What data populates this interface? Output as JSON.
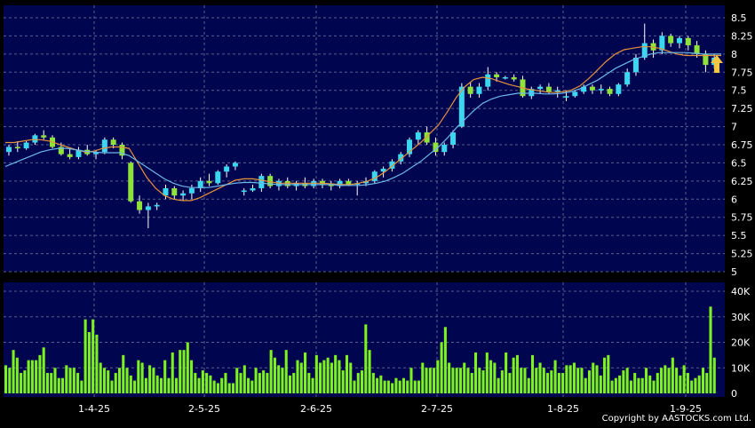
{
  "copyright": "Copyright by AASTOCKS.com Ltd.",
  "colors": {
    "plot_bg": "#000550",
    "grid": "#5a5f8c",
    "up_candle": "#39d8f0",
    "down_candle": "#8ee23a",
    "ma_short": "#e8923a",
    "ma_long": "#6db8e8",
    "volume": "#7df21e",
    "arrow": "#f5c842",
    "text": "#ffffff"
  },
  "chart_data": [
    {
      "type": "candlestick",
      "title": "",
      "x_ticks": [
        "1-4-25",
        "2-5-25",
        "2-6-25",
        "2-7-25",
        "1-8-25",
        "1-9-25"
      ],
      "y_ticks": [
        "8.5",
        "8.25",
        "8",
        "7.75",
        "7.5",
        "7.25",
        "7",
        "6.75",
        "6.5",
        "6.25",
        "6",
        "5.75",
        "5.5",
        "5.25",
        "5"
      ],
      "ylim": [
        5,
        8.5
      ],
      "grid": true,
      "series": [
        {
          "type": "line",
          "values": [
            6.78,
            6.78,
            6.8,
            6.82,
            6.82,
            6.8,
            6.76,
            6.72,
            6.68,
            6.65,
            6.66,
            6.7,
            6.72,
            6.72,
            6.7,
            6.5,
            6.3,
            6.15,
            6.05,
            6.0,
            5.98,
            5.98,
            6.02,
            6.08,
            6.14,
            6.2,
            6.26,
            6.28,
            6.28,
            6.26,
            6.24,
            6.22,
            6.22,
            6.22,
            6.22,
            6.22,
            6.22,
            6.21,
            6.2,
            6.2,
            6.22,
            6.25,
            6.3,
            6.38,
            6.48,
            6.58,
            6.68,
            6.78,
            6.9,
            7.02,
            7.2,
            7.4,
            7.55,
            7.65,
            7.68,
            7.66,
            7.62,
            7.58,
            7.55,
            7.52,
            7.5,
            7.48,
            7.47,
            7.48,
            7.5,
            7.56,
            7.66,
            7.78,
            7.9,
            8.0,
            8.06,
            8.08,
            8.1,
            8.1,
            8.08,
            8.04,
            8.0,
            7.98,
            7.98,
            7.98,
            7.98,
            7.98
          ]
        },
        {
          "type": "line",
          "values": [
            6.45,
            6.5,
            6.55,
            6.6,
            6.65,
            6.68,
            6.7,
            6.7,
            6.68,
            6.66,
            6.65,
            6.64,
            6.64,
            6.64,
            6.6,
            6.52,
            6.44,
            6.36,
            6.28,
            6.22,
            6.18,
            6.16,
            6.16,
            6.16,
            6.18,
            6.2,
            6.22,
            6.23,
            6.23,
            6.22,
            6.21,
            6.2,
            6.2,
            6.2,
            6.2,
            6.2,
            6.2,
            6.2,
            6.19,
            6.19,
            6.19,
            6.2,
            6.22,
            6.25,
            6.3,
            6.36,
            6.44,
            6.52,
            6.62,
            6.72,
            6.84,
            6.98,
            7.1,
            7.22,
            7.32,
            7.38,
            7.42,
            7.44,
            7.46,
            7.46,
            7.46,
            7.45,
            7.45,
            7.46,
            7.48,
            7.52,
            7.58,
            7.64,
            7.72,
            7.8,
            7.86,
            7.92,
            7.96,
            8.0,
            8.02,
            8.02,
            8.02,
            8.02,
            8.01,
            8.0,
            8.0,
            8.0
          ]
        }
      ],
      "candles": [
        {
          "o": 6.65,
          "h": 6.75,
          "l": 6.6,
          "c": 6.72
        },
        {
          "o": 6.72,
          "h": 6.8,
          "l": 6.65,
          "c": 6.7
        },
        {
          "o": 6.7,
          "h": 6.8,
          "l": 6.68,
          "c": 6.78
        },
        {
          "o": 6.78,
          "h": 6.9,
          "l": 6.75,
          "c": 6.88
        },
        {
          "o": 6.88,
          "h": 6.95,
          "l": 6.82,
          "c": 6.85
        },
        {
          "o": 6.85,
          "h": 6.88,
          "l": 6.7,
          "c": 6.72
        },
        {
          "o": 6.72,
          "h": 6.78,
          "l": 6.6,
          "c": 6.62
        },
        {
          "o": 6.62,
          "h": 6.7,
          "l": 6.55,
          "c": 6.58
        },
        {
          "o": 6.58,
          "h": 6.72,
          "l": 6.55,
          "c": 6.68
        },
        {
          "o": 6.68,
          "h": 6.75,
          "l": 6.6,
          "c": 6.62
        },
        {
          "o": 6.62,
          "h": 6.68,
          "l": 6.55,
          "c": 6.65
        },
        {
          "o": 6.65,
          "h": 6.85,
          "l": 6.62,
          "c": 6.82
        },
        {
          "o": 6.82,
          "h": 6.85,
          "l": 6.7,
          "c": 6.75
        },
        {
          "o": 6.75,
          "h": 6.78,
          "l": 6.55,
          "c": 6.6
        },
        {
          "o": 6.5,
          "h": 6.52,
          "l": 5.95,
          "c": 5.97
        },
        {
          "o": 5.97,
          "h": 6.05,
          "l": 5.8,
          "c": 5.85
        },
        {
          "o": 5.85,
          "h": 5.95,
          "l": 5.6,
          "c": 5.9
        },
        {
          "o": 5.9,
          "h": 5.95,
          "l": 5.85,
          "c": 5.92
        },
        {
          "o": 6.05,
          "h": 6.2,
          "l": 6.0,
          "c": 6.15
        },
        {
          "o": 6.15,
          "h": 6.18,
          "l": 6.0,
          "c": 6.05
        },
        {
          "o": 6.05,
          "h": 6.12,
          "l": 5.98,
          "c": 6.08
        },
        {
          "o": 6.08,
          "h": 6.2,
          "l": 6.0,
          "c": 6.15
        },
        {
          "o": 6.15,
          "h": 6.3,
          "l": 6.1,
          "c": 6.25
        },
        {
          "o": 6.25,
          "h": 6.35,
          "l": 6.18,
          "c": 6.22
        },
        {
          "o": 6.22,
          "h": 6.4,
          "l": 6.2,
          "c": 6.38
        },
        {
          "o": 6.38,
          "h": 6.48,
          "l": 6.3,
          "c": 6.45
        },
        {
          "o": 6.45,
          "h": 6.52,
          "l": 6.4,
          "c": 6.5
        },
        {
          "o": 6.1,
          "h": 6.15,
          "l": 6.05,
          "c": 6.12
        },
        {
          "o": 6.12,
          "h": 6.2,
          "l": 6.1,
          "c": 6.15
        },
        {
          "o": 6.15,
          "h": 6.35,
          "l": 6.1,
          "c": 6.32
        },
        {
          "o": 6.32,
          "h": 6.35,
          "l": 6.15,
          "c": 6.18
        },
        {
          "o": 6.18,
          "h": 6.28,
          "l": 6.12,
          "c": 6.25
        },
        {
          "o": 6.25,
          "h": 6.3,
          "l": 6.15,
          "c": 6.18
        },
        {
          "o": 6.18,
          "h": 6.25,
          "l": 6.12,
          "c": 6.22
        },
        {
          "o": 6.22,
          "h": 6.3,
          "l": 6.15,
          "c": 6.18
        },
        {
          "o": 6.18,
          "h": 6.28,
          "l": 6.15,
          "c": 6.25
        },
        {
          "o": 6.25,
          "h": 6.28,
          "l": 6.15,
          "c": 6.2
        },
        {
          "o": 6.2,
          "h": 6.25,
          "l": 6.12,
          "c": 6.18
        },
        {
          "o": 6.18,
          "h": 6.28,
          "l": 6.15,
          "c": 6.25
        },
        {
          "o": 6.25,
          "h": 6.28,
          "l": 6.18,
          "c": 6.2
        },
        {
          "o": 6.2,
          "h": 6.25,
          "l": 6.05,
          "c": 6.22
        },
        {
          "o": 6.22,
          "h": 6.3,
          "l": 6.18,
          "c": 6.25
        },
        {
          "o": 6.25,
          "h": 6.4,
          "l": 6.22,
          "c": 6.38
        },
        {
          "o": 6.38,
          "h": 6.45,
          "l": 6.3,
          "c": 6.42
        },
        {
          "o": 6.42,
          "h": 6.55,
          "l": 6.38,
          "c": 6.52
        },
        {
          "o": 6.52,
          "h": 6.65,
          "l": 6.48,
          "c": 6.62
        },
        {
          "o": 6.62,
          "h": 6.85,
          "l": 6.58,
          "c": 6.82
        },
        {
          "o": 6.82,
          "h": 6.95,
          "l": 6.75,
          "c": 6.92
        },
        {
          "o": 6.92,
          "h": 7.0,
          "l": 6.75,
          "c": 6.78
        },
        {
          "o": 6.78,
          "h": 6.85,
          "l": 6.6,
          "c": 6.65
        },
        {
          "o": 6.65,
          "h": 6.78,
          "l": 6.6,
          "c": 6.75
        },
        {
          "o": 6.75,
          "h": 6.95,
          "l": 6.7,
          "c": 6.92
        },
        {
          "o": 7.0,
          "h": 7.6,
          "l": 6.98,
          "c": 7.55
        },
        {
          "o": 7.55,
          "h": 7.62,
          "l": 7.4,
          "c": 7.45
        },
        {
          "o": 7.45,
          "h": 7.6,
          "l": 7.4,
          "c": 7.55
        },
        {
          "o": 7.55,
          "h": 7.82,
          "l": 7.5,
          "c": 7.72
        },
        {
          "o": 7.72,
          "h": 7.75,
          "l": 7.62,
          "c": 7.68
        },
        {
          "o": 7.68,
          "h": 7.7,
          "l": 7.65,
          "c": 7.68
        },
        {
          "o": 7.68,
          "h": 7.72,
          "l": 7.62,
          "c": 7.65
        },
        {
          "o": 7.65,
          "h": 7.7,
          "l": 7.4,
          "c": 7.42
        },
        {
          "o": 7.42,
          "h": 7.55,
          "l": 7.38,
          "c": 7.52
        },
        {
          "o": 7.52,
          "h": 7.58,
          "l": 7.45,
          "c": 7.55
        },
        {
          "o": 7.55,
          "h": 7.6,
          "l": 7.45,
          "c": 7.48
        },
        {
          "o": 7.48,
          "h": 7.55,
          "l": 7.4,
          "c": 7.5
        },
        {
          "o": 7.4,
          "h": 7.5,
          "l": 7.35,
          "c": 7.42
        },
        {
          "o": 7.42,
          "h": 7.5,
          "l": 7.4,
          "c": 7.48
        },
        {
          "o": 7.48,
          "h": 7.58,
          "l": 7.45,
          "c": 7.55
        },
        {
          "o": 7.55,
          "h": 7.58,
          "l": 7.45,
          "c": 7.5
        },
        {
          "o": 7.5,
          "h": 7.58,
          "l": 7.45,
          "c": 7.52
        },
        {
          "o": 7.52,
          "h": 7.55,
          "l": 7.42,
          "c": 7.45
        },
        {
          "o": 7.45,
          "h": 7.6,
          "l": 7.42,
          "c": 7.58
        },
        {
          "o": 7.58,
          "h": 7.8,
          "l": 7.55,
          "c": 7.75
        },
        {
          "o": 7.75,
          "h": 8.0,
          "l": 7.7,
          "c": 7.95
        },
        {
          "o": 7.95,
          "h": 8.42,
          "l": 7.92,
          "c": 8.15
        },
        {
          "o": 8.15,
          "h": 8.2,
          "l": 7.95,
          "c": 8.05
        },
        {
          "o": 8.05,
          "h": 8.3,
          "l": 8.0,
          "c": 8.25
        },
        {
          "o": 8.25,
          "h": 8.28,
          "l": 8.1,
          "c": 8.15
        },
        {
          "o": 8.15,
          "h": 8.25,
          "l": 8.08,
          "c": 8.22
        },
        {
          "o": 8.22,
          "h": 8.25,
          "l": 8.05,
          "c": 8.12
        },
        {
          "o": 8.12,
          "h": 8.18,
          "l": 7.95,
          "c": 8.0
        },
        {
          "o": 8.0,
          "h": 8.05,
          "l": 7.75,
          "c": 7.85
        },
        {
          "o": 7.85,
          "h": 8.0,
          "l": 7.8,
          "c": 7.95
        }
      ]
    },
    {
      "type": "bar",
      "title": "",
      "y_ticks": [
        "40K",
        "30K",
        "20K",
        "10K",
        "0"
      ],
      "ylim": [
        0,
        42000
      ],
      "grid": true,
      "values": [
        11000,
        10000,
        17000,
        14000,
        8000,
        9000,
        13000,
        13000,
        13000,
        15000,
        18000,
        8000,
        8000,
        10000,
        6000,
        6000,
        11000,
        10000,
        10000,
        8000,
        5000,
        29000,
        24000,
        29000,
        23000,
        12000,
        10000,
        9000,
        5000,
        8000,
        10000,
        15000,
        10000,
        7000,
        5000,
        13000,
        12000,
        6000,
        11000,
        10000,
        7000,
        6000,
        13000,
        6000,
        16000,
        6000,
        17000,
        17000,
        20000,
        13000,
        8000,
        6000,
        9000,
        8000,
        7000,
        5000,
        4000,
        6000,
        8000,
        4000,
        4000,
        10000,
        8000,
        11000,
        6000,
        5000,
        10000,
        8000,
        9000,
        8000,
        17000,
        14000,
        11000,
        10000,
        17000,
        7000,
        8000,
        13000,
        12000,
        16000,
        8000,
        6000,
        15000,
        12000,
        13000,
        14000,
        12000,
        15000,
        13000,
        9000,
        15000,
        12000,
        5000,
        8000,
        9000,
        27000,
        17000,
        8000,
        6000,
        7000,
        5000,
        5000,
        4000,
        6000,
        5000,
        6000,
        5000,
        10000,
        5000,
        5000,
        12000,
        10000,
        10000,
        10000,
        13000,
        20000,
        26000,
        12000,
        10000,
        10000,
        10000,
        12000,
        10000,
        8000,
        16000,
        10000,
        9000,
        16000,
        13000,
        12000,
        6000,
        9000,
        16000,
        8000,
        14000,
        15000,
        10000,
        10000,
        6000,
        15000,
        10000,
        12000,
        10000,
        8000,
        9000,
        13000,
        8000,
        8000,
        11000,
        11000,
        12000,
        10000,
        10000,
        6000,
        9000,
        12000,
        11000,
        7000,
        14000,
        15000,
        5000,
        6000,
        7000,
        9000,
        10000,
        5000,
        8000,
        6000,
        6000,
        10000,
        7000,
        5000,
        8000,
        10000,
        11000,
        10000,
        14000,
        10000,
        7000,
        11000,
        8000,
        5000,
        6000,
        7000,
        10000,
        8000,
        34000,
        14000
      ]
    }
  ]
}
